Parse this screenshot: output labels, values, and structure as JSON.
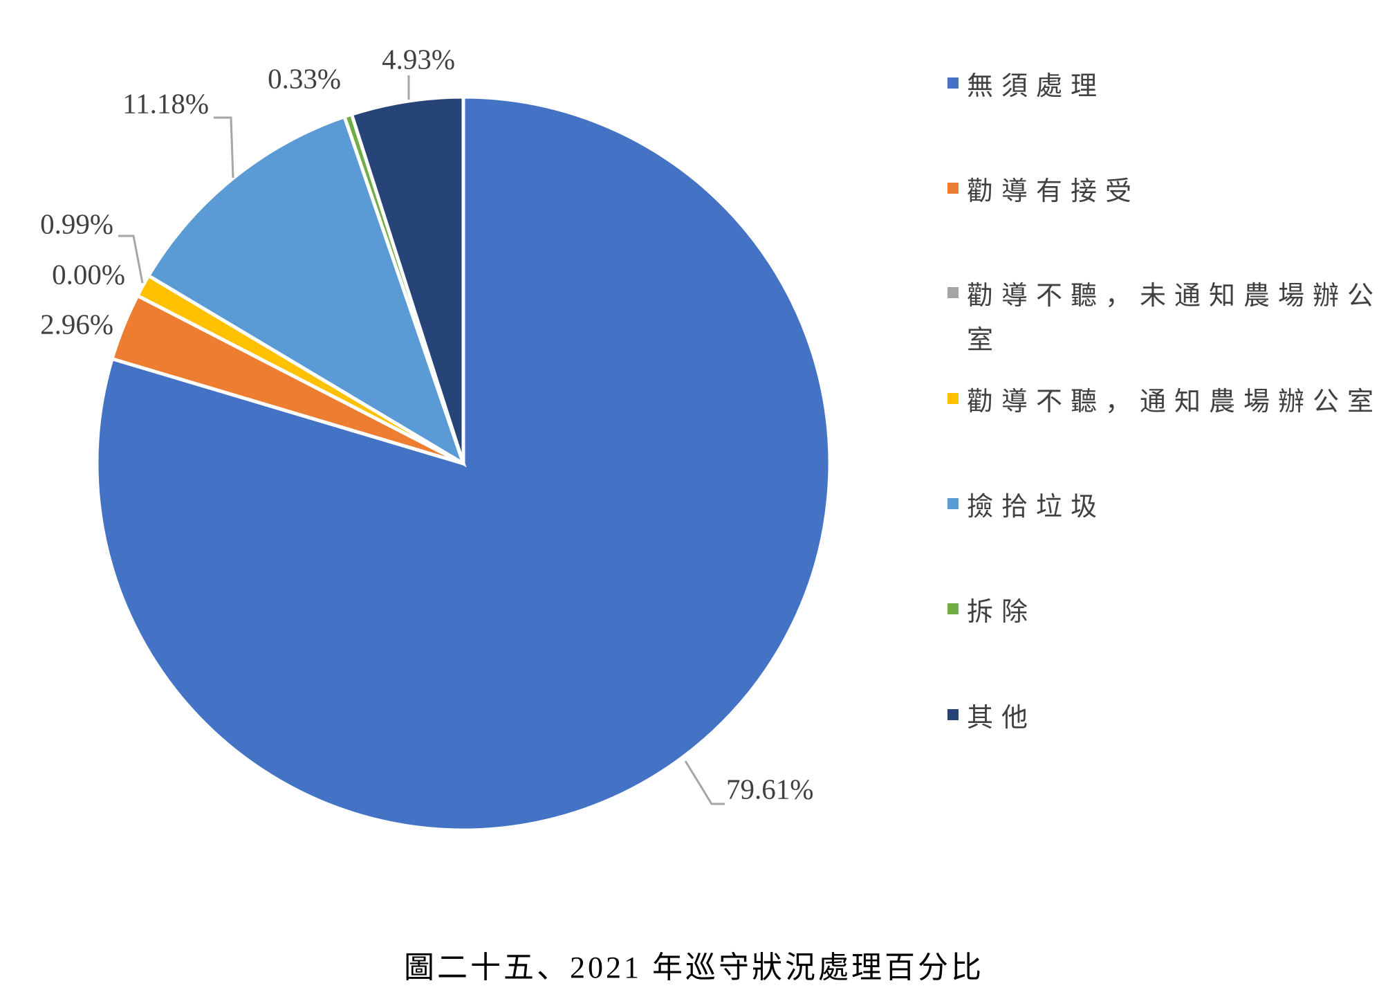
{
  "chart_data": {
    "type": "pie",
    "title": "圖二十五、2021 年巡守狀況處理百分比",
    "categories": [
      "無須處理",
      "勸導有接受",
      "勸導不聽，未通知農場辦公室",
      "勸導不聽，通知農場辦公室",
      "撿拾垃圾",
      "拆除",
      "其他"
    ],
    "values": [
      79.61,
      2.96,
      0.0,
      0.99,
      11.18,
      0.33,
      4.93
    ],
    "value_labels": [
      "79.61%",
      "2.96%",
      "0.00%",
      "0.99%",
      "11.18%",
      "0.33%",
      "4.93%"
    ],
    "colors": [
      "#4472c4",
      "#ed7d31",
      "#a5a5a5",
      "#ffc000",
      "#5b9bd5",
      "#70ad47",
      "#264478"
    ],
    "legend": "right"
  }
}
